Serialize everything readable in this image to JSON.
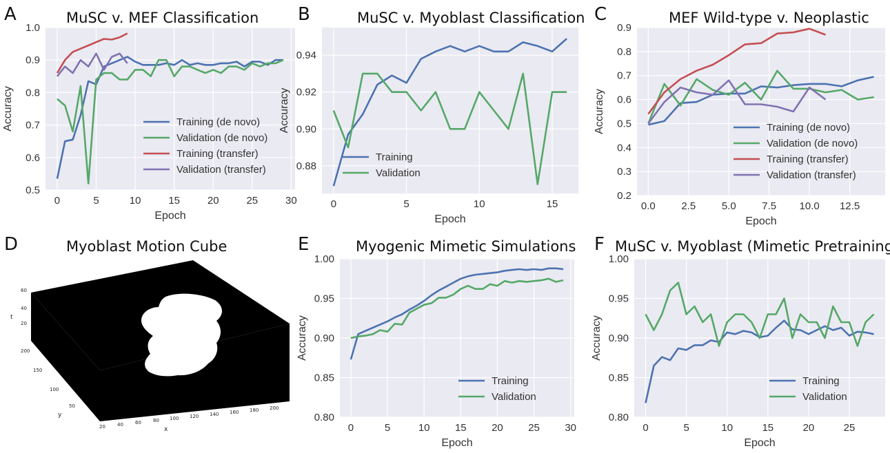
{
  "figure": {
    "colors": {
      "blue": "#4c72b0",
      "green": "#55a868",
      "red": "#c44e52",
      "purple": "#8172b2",
      "plot_bg": "#eaeaf2",
      "grid": "#ffffff"
    }
  },
  "panels": [
    {
      "letter": "A",
      "title": "MuSC v. MEF Classification"
    },
    {
      "letter": "B",
      "title": "MuSC v. Myoblast Classification"
    },
    {
      "letter": "C",
      "title": "MEF Wild-type v. Neoplastic"
    },
    {
      "letter": "D",
      "title": "Myoblast Motion Cube"
    },
    {
      "letter": "E",
      "title": "Myogenic Mimetic Simulations"
    },
    {
      "letter": "F",
      "title": "MuSC v. Myoblast (Mimetic Pretraining)"
    }
  ],
  "chart_data": [
    {
      "type": "line",
      "title": "MuSC v. MEF Classification",
      "xlabel": "Epoch",
      "ylabel": "Accuracy",
      "xlim": [
        -1.5,
        30.5
      ],
      "ylim": [
        0.5,
        1.0
      ],
      "xticks": [
        0,
        5,
        10,
        15,
        20,
        25,
        30
      ],
      "yticks": [
        0.5,
        0.6,
        0.7,
        0.8,
        0.9,
        1.0
      ],
      "ytick_labels": [
        "0.5",
        "0.6",
        "0.7",
        "0.8",
        "0.9",
        "1.0"
      ],
      "legend": "lower-right",
      "series": [
        {
          "name": "Training (de novo)",
          "color": "#4c72b0",
          "x": [
            0,
            1,
            2,
            3,
            4,
            5,
            6,
            7,
            8,
            9,
            10,
            11,
            12,
            13,
            14,
            15,
            16,
            17,
            18,
            19,
            20,
            21,
            22,
            23,
            24,
            25,
            26,
            27,
            28,
            29
          ],
          "values": [
            0.535,
            0.65,
            0.655,
            0.73,
            0.835,
            0.825,
            0.88,
            0.89,
            0.9,
            0.91,
            0.895,
            0.885,
            0.885,
            0.885,
            0.89,
            0.885,
            0.9,
            0.885,
            0.89,
            0.885,
            0.885,
            0.89,
            0.89,
            0.895,
            0.88,
            0.895,
            0.895,
            0.885,
            0.9,
            0.9
          ]
        },
        {
          "name": "Validation (de novo)",
          "color": "#55a868",
          "x": [
            0,
            1,
            2,
            3,
            4,
            5,
            6,
            7,
            8,
            9,
            10,
            11,
            12,
            13,
            14,
            15,
            16,
            17,
            18,
            19,
            20,
            21,
            22,
            23,
            24,
            25,
            26,
            27,
            28,
            29
          ],
          "values": [
            0.78,
            0.76,
            0.68,
            0.82,
            0.52,
            0.84,
            0.86,
            0.86,
            0.84,
            0.84,
            0.87,
            0.87,
            0.85,
            0.9,
            0.9,
            0.85,
            0.88,
            0.88,
            0.87,
            0.86,
            0.87,
            0.86,
            0.88,
            0.88,
            0.87,
            0.89,
            0.88,
            0.89,
            0.89,
            0.9
          ]
        },
        {
          "name": "Training (transfer)",
          "color": "#c44e52",
          "x": [
            0,
            1,
            2,
            3,
            4,
            5,
            6,
            7,
            8,
            9
          ],
          "values": [
            0.86,
            0.9,
            0.925,
            0.935,
            0.945,
            0.955,
            0.965,
            0.963,
            0.97,
            0.982
          ]
        },
        {
          "name": "Validation (transfer)",
          "color": "#8172b2",
          "x": [
            0,
            1,
            2,
            3,
            4,
            5,
            6,
            7,
            8,
            9
          ],
          "values": [
            0.85,
            0.88,
            0.86,
            0.9,
            0.88,
            0.92,
            0.87,
            0.91,
            0.92,
            0.89
          ]
        }
      ]
    },
    {
      "type": "line",
      "title": "MuSC v. Myoblast Classification",
      "xlabel": "Epoch",
      "ylabel": "Accuracy",
      "xlim": [
        -0.8,
        16.8
      ],
      "ylim": [
        0.865,
        0.955
      ],
      "xticks": [
        0,
        5,
        10,
        15
      ],
      "yticks": [
        0.88,
        0.9,
        0.92,
        0.94
      ],
      "ytick_labels": [
        "0.88",
        "0.90",
        "0.92",
        "0.94"
      ],
      "legend": "lower-left",
      "series": [
        {
          "name": "Training",
          "color": "#4c72b0",
          "x": [
            0,
            1,
            2,
            3,
            4,
            5,
            6,
            7,
            8,
            9,
            10,
            11,
            12,
            13,
            14,
            15,
            16
          ],
          "values": [
            0.869,
            0.897,
            0.908,
            0.924,
            0.929,
            0.925,
            0.938,
            0.942,
            0.945,
            0.942,
            0.945,
            0.942,
            0.942,
            0.947,
            0.945,
            0.942,
            0.949
          ]
        },
        {
          "name": "Validation",
          "color": "#55a868",
          "x": [
            0,
            1,
            2,
            3,
            4,
            5,
            6,
            7,
            8,
            9,
            10,
            11,
            12,
            13,
            14,
            15,
            16
          ],
          "values": [
            0.91,
            0.89,
            0.93,
            0.93,
            0.92,
            0.92,
            0.91,
            0.92,
            0.9,
            0.9,
            0.92,
            0.91,
            0.9,
            0.93,
            0.87,
            0.92,
            0.92
          ]
        }
      ]
    },
    {
      "type": "line",
      "title": "MEF Wild-type v. Neoplastic",
      "xlabel": "Epoch",
      "ylabel": "Accuracy",
      "xlim": [
        -0.7,
        14.7
      ],
      "ylim": [
        0.2,
        0.9
      ],
      "xticks": [
        0,
        2.5,
        5,
        7.5,
        10,
        12.5
      ],
      "xtick_labels": [
        "0.0",
        "2.5",
        "5.0",
        "7.5",
        "10.0",
        "12.5"
      ],
      "yticks": [
        0.2,
        0.3,
        0.4,
        0.5,
        0.6,
        0.7,
        0.8,
        0.9
      ],
      "ytick_labels": [
        "0.2",
        "0.3",
        "0.4",
        "0.5",
        "0.6",
        "0.7",
        "0.8",
        "0.9"
      ],
      "legend": "lower-right",
      "series": [
        {
          "name": "Training (de novo)",
          "color": "#4c72b0",
          "x": [
            0,
            1,
            2,
            3,
            4,
            5,
            6,
            7,
            8,
            9,
            10,
            11,
            12,
            13,
            14
          ],
          "values": [
            0.495,
            0.51,
            0.585,
            0.59,
            0.62,
            0.625,
            0.625,
            0.655,
            0.65,
            0.66,
            0.665,
            0.665,
            0.655,
            0.68,
            0.695
          ]
        },
        {
          "name": "Validation (de novo)",
          "color": "#55a868",
          "x": [
            0,
            1,
            2,
            3,
            4,
            5,
            6,
            7,
            8,
            9,
            10,
            11,
            12,
            13,
            14
          ],
          "values": [
            0.5,
            0.665,
            0.575,
            0.685,
            0.64,
            0.62,
            0.67,
            0.6,
            0.72,
            0.645,
            0.645,
            0.63,
            0.64,
            0.6,
            0.61
          ]
        },
        {
          "name": "Training (transfer)",
          "color": "#c44e52",
          "x": [
            0,
            1,
            2,
            3,
            4,
            5,
            6,
            7,
            8,
            9,
            10,
            11
          ],
          "values": [
            0.54,
            0.63,
            0.685,
            0.72,
            0.745,
            0.785,
            0.83,
            0.835,
            0.875,
            0.88,
            0.895,
            0.87
          ]
        },
        {
          "name": "Validation (transfer)",
          "color": "#8172b2",
          "x": [
            0,
            1,
            2,
            3,
            4,
            5,
            6,
            7,
            8,
            9,
            10,
            11
          ],
          "values": [
            0.5,
            0.59,
            0.65,
            0.63,
            0.62,
            0.68,
            0.58,
            0.58,
            0.57,
            0.55,
            0.65,
            0.6
          ]
        }
      ]
    },
    {
      "type": "line",
      "title": "Myogenic Mimetic Simulations",
      "xlabel": "Epoch",
      "ylabel": "Accuracy",
      "xlim": [
        -1.5,
        30.5
      ],
      "ylim": [
        0.8,
        1.0
      ],
      "xticks": [
        0,
        5,
        10,
        15,
        20,
        25,
        30
      ],
      "yticks": [
        0.8,
        0.85,
        0.9,
        0.95,
        1.0
      ],
      "ytick_labels": [
        "0.80",
        "0.85",
        "0.90",
        "0.95",
        "1.00"
      ],
      "legend": "lower-right",
      "series": [
        {
          "name": "Training",
          "color": "#4c72b0",
          "x": [
            0,
            1,
            2,
            3,
            4,
            5,
            6,
            7,
            8,
            9,
            10,
            11,
            12,
            13,
            14,
            15,
            16,
            17,
            18,
            19,
            20,
            21,
            22,
            23,
            24,
            25,
            26,
            27,
            28,
            29
          ],
          "values": [
            0.873,
            0.905,
            0.909,
            0.913,
            0.917,
            0.921,
            0.926,
            0.93,
            0.936,
            0.941,
            0.947,
            0.954,
            0.96,
            0.965,
            0.97,
            0.975,
            0.978,
            0.98,
            0.981,
            0.982,
            0.983,
            0.985,
            0.986,
            0.987,
            0.986,
            0.987,
            0.986,
            0.988,
            0.988,
            0.987
          ]
        },
        {
          "name": "Validation",
          "color": "#55a868",
          "x": [
            0,
            1,
            2,
            3,
            4,
            5,
            6,
            7,
            8,
            9,
            10,
            11,
            12,
            13,
            14,
            15,
            16,
            17,
            18,
            19,
            20,
            21,
            22,
            23,
            24,
            25,
            26,
            27,
            28,
            29
          ],
          "values": [
            0.9,
            0.902,
            0.903,
            0.905,
            0.91,
            0.908,
            0.918,
            0.917,
            0.932,
            0.937,
            0.942,
            0.944,
            0.951,
            0.951,
            0.955,
            0.962,
            0.966,
            0.962,
            0.962,
            0.968,
            0.966,
            0.972,
            0.97,
            0.972,
            0.971,
            0.972,
            0.973,
            0.975,
            0.971,
            0.973
          ]
        }
      ]
    },
    {
      "type": "line",
      "title": "MuSC v. Myoblast (Mimetic Pretraining)",
      "xlabel": "Epoch",
      "ylabel": "Accuracy",
      "xlim": [
        -1.4,
        29.4
      ],
      "ylim": [
        0.8,
        1.0
      ],
      "xticks": [
        0,
        5,
        10,
        15,
        20,
        25
      ],
      "yticks": [
        0.8,
        0.85,
        0.9,
        0.95,
        1.0
      ],
      "ytick_labels": [
        "0.80",
        "0.85",
        "0.90",
        "0.95",
        "1.00"
      ],
      "legend": "lower-right",
      "series": [
        {
          "name": "Training",
          "color": "#4c72b0",
          "x": [
            0,
            1,
            2,
            3,
            4,
            5,
            6,
            7,
            8,
            9,
            10,
            11,
            12,
            13,
            14,
            15,
            16,
            17,
            18,
            19,
            20,
            21,
            22,
            23,
            24,
            25,
            26,
            27,
            28
          ],
          "values": [
            0.818,
            0.865,
            0.876,
            0.872,
            0.887,
            0.885,
            0.891,
            0.891,
            0.897,
            0.895,
            0.907,
            0.905,
            0.909,
            0.907,
            0.901,
            0.903,
            0.913,
            0.922,
            0.911,
            0.91,
            0.905,
            0.91,
            0.915,
            0.91,
            0.913,
            0.903,
            0.908,
            0.907,
            0.905
          ]
        },
        {
          "name": "Validation",
          "color": "#55a868",
          "x": [
            0,
            1,
            2,
            3,
            4,
            5,
            6,
            7,
            8,
            9,
            10,
            11,
            12,
            13,
            14,
            15,
            16,
            17,
            18,
            19,
            20,
            21,
            22,
            23,
            24,
            25,
            26,
            27,
            28
          ],
          "values": [
            0.93,
            0.91,
            0.93,
            0.96,
            0.97,
            0.93,
            0.94,
            0.92,
            0.93,
            0.89,
            0.92,
            0.93,
            0.93,
            0.92,
            0.9,
            0.93,
            0.93,
            0.95,
            0.9,
            0.93,
            0.92,
            0.92,
            0.9,
            0.94,
            0.92,
            0.92,
            0.89,
            0.92,
            0.93
          ]
        }
      ]
    }
  ],
  "cube": {
    "z_label": "t",
    "y_label": "y",
    "x_label": "x",
    "z_ticks": [
      "20",
      "40",
      "60"
    ],
    "y_ticks": [
      "50",
      "100",
      "150",
      "200"
    ],
    "x_ticks": [
      "20",
      "40",
      "60",
      "80",
      "100",
      "120",
      "140",
      "160",
      "180",
      "200"
    ]
  }
}
